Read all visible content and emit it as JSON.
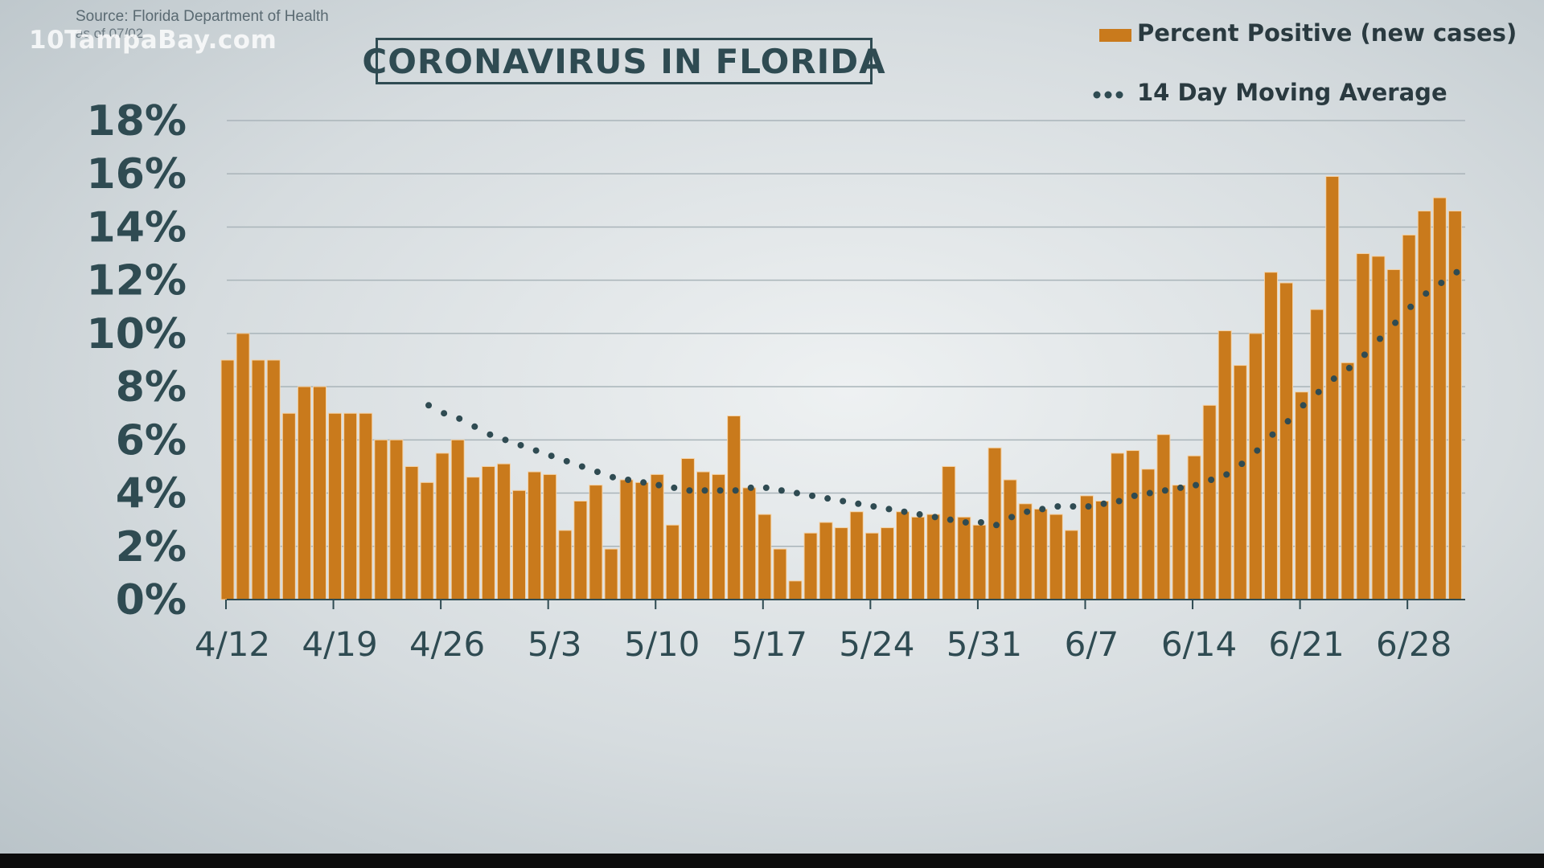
{
  "source": "Source: Florida Department of Health",
  "as_of": "as of 07/02",
  "brand": "10TampaBay.com",
  "title": "CORONAVIRUS IN FLORIDA",
  "colors": {
    "bar": "#c97a1c",
    "bar_edge": "#f6d2a4",
    "average": "#2f4b52",
    "grid": "#a9b4b9",
    "axis_text": "#2f4b52"
  },
  "chart_data": {
    "type": "bar",
    "title": "CORONAVIRUS IN FLORIDA",
    "x_start": "4/12",
    "xticks": [
      "4/12",
      "4/19",
      "4/26",
      "5/3",
      "5/10",
      "5/17",
      "5/24",
      "5/31",
      "6/7",
      "6/14",
      "6/21",
      "6/28"
    ],
    "yticks": [
      "0%",
      "2%",
      "4%",
      "6%",
      "8%",
      "10%",
      "12%",
      "14%",
      "16%",
      "18%"
    ],
    "ylim": [
      0,
      18
    ],
    "grid": true,
    "legend_position": "top-right",
    "series": [
      {
        "name": "Percent Positive (new cases)",
        "type": "bar",
        "values": [
          9.0,
          10.0,
          9.0,
          9.0,
          7.0,
          8.0,
          8.0,
          7.0,
          7.0,
          7.0,
          6.0,
          6.0,
          5.0,
          4.4,
          5.5,
          6.0,
          4.6,
          5.0,
          5.1,
          4.1,
          4.8,
          4.7,
          2.6,
          3.7,
          4.3,
          1.9,
          4.5,
          4.4,
          4.7,
          2.8,
          5.3,
          4.8,
          4.7,
          6.9,
          4.2,
          3.2,
          1.9,
          0.7,
          2.5,
          2.9,
          2.7,
          3.3,
          2.5,
          2.7,
          3.3,
          3.1,
          3.2,
          5.0,
          3.1,
          2.8,
          5.7,
          4.5,
          3.6,
          3.4,
          3.2,
          2.6,
          3.9,
          3.7,
          5.5,
          5.6,
          4.9,
          6.2,
          4.3,
          5.4,
          7.3,
          10.1,
          8.8,
          10.0,
          12.3,
          11.9,
          7.8,
          10.9,
          15.9,
          8.9,
          13.0,
          12.9,
          12.4,
          13.7,
          14.6,
          15.1,
          14.6
        ]
      },
      {
        "name": "14 Day Moving Average",
        "type": "line",
        "style": "dotted",
        "start_index": 13,
        "values": [
          7.3,
          7.0,
          6.8,
          6.5,
          6.2,
          6.0,
          5.8,
          5.6,
          5.4,
          5.2,
          5.0,
          4.8,
          4.6,
          4.5,
          4.4,
          4.3,
          4.2,
          4.1,
          4.1,
          4.1,
          4.1,
          4.2,
          4.2,
          4.1,
          4.0,
          3.9,
          3.8,
          3.7,
          3.6,
          3.5,
          3.4,
          3.3,
          3.2,
          3.1,
          3.0,
          2.9,
          2.9,
          2.8,
          3.1,
          3.3,
          3.4,
          3.5,
          3.5,
          3.5,
          3.6,
          3.7,
          3.9,
          4.0,
          4.1,
          4.2,
          4.3,
          4.5,
          4.7,
          5.1,
          5.6,
          6.2,
          6.7,
          7.3,
          7.8,
          8.3,
          8.7,
          9.2,
          9.8,
          10.4,
          11.0,
          11.5,
          11.9,
          12.3
        ]
      }
    ]
  }
}
